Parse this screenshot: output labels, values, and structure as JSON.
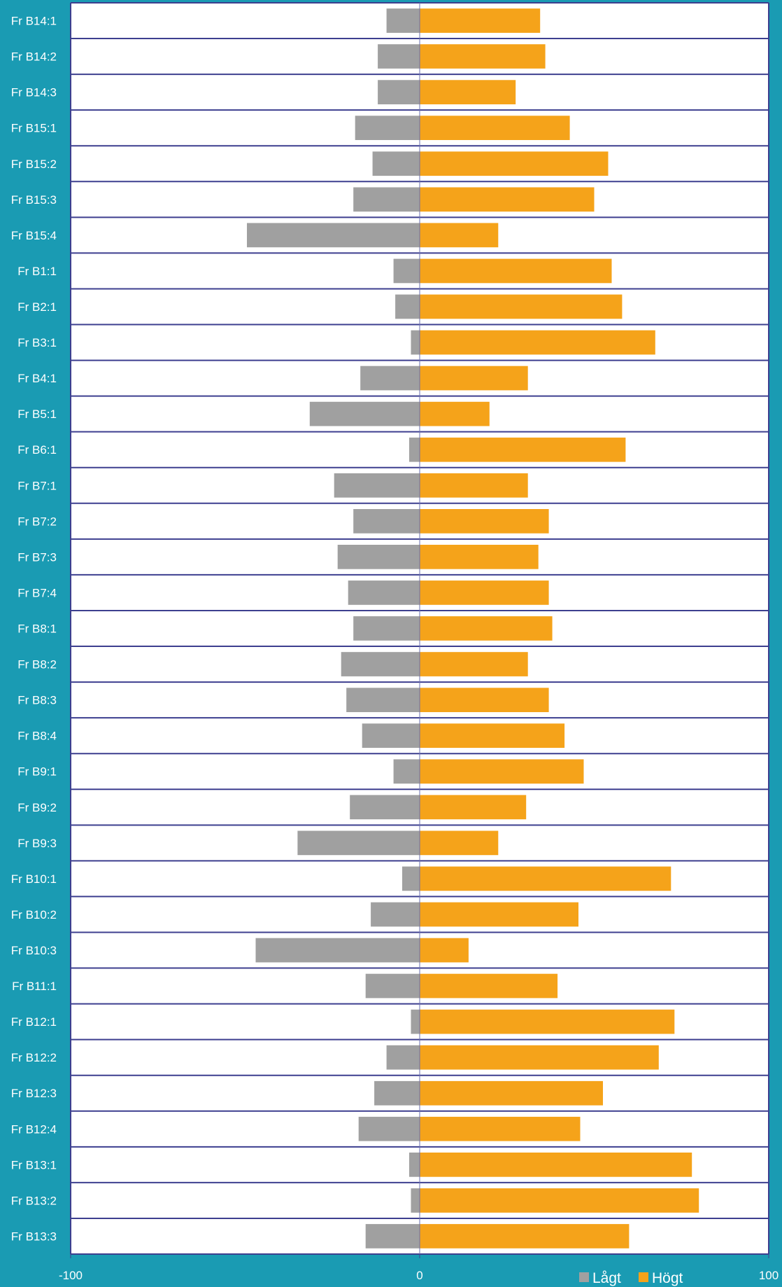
{
  "chart_data": {
    "type": "bar",
    "orientation": "horizontal",
    "stacked": "diverging",
    "categories": [
      "Fr B14:1",
      "Fr B14:2",
      "Fr B14:3",
      "Fr B15:1",
      "Fr B15:2",
      "Fr B15:3",
      "Fr B15:4",
      "Fr B1:1",
      "Fr B2:1",
      "Fr B3:1",
      "Fr B4:1",
      "Fr B5:1",
      "Fr B6:1",
      "Fr B7:1",
      "Fr B7:2",
      "Fr B7:3",
      "Fr B7:4",
      "Fr B8:1",
      "Fr B8:2",
      "Fr B8:3",
      "Fr B8:4",
      "Fr B9:1",
      "Fr B9:2",
      "Fr B9:3",
      "Fr B10:1",
      "Fr B10:2",
      "Fr B10:3",
      "Fr B11:1",
      "Fr B12:1",
      "Fr B12:2",
      "Fr B12:3",
      "Fr B12:4",
      "Fr B13:1",
      "Fr B13:2",
      "Fr B13:3"
    ],
    "series": [
      {
        "name": "Lågt",
        "color": "#a0a0a0",
        "values": [
          -9.5,
          -12,
          -12,
          -18.5,
          -13.5,
          -19,
          -49.5,
          -7.5,
          -7,
          -2.5,
          -17,
          -31.5,
          -3,
          -24.5,
          -19,
          -23.5,
          -20.5,
          -19,
          -22.5,
          -21,
          -16.5,
          -7.5,
          -20,
          -35,
          -5,
          -14,
          -47,
          -15.5,
          -2.5,
          -9.5,
          -13,
          -17.5,
          -3,
          -2.5,
          -15.5
        ]
      },
      {
        "name": "Högt",
        "color": "#f5a31a",
        "values": [
          34.5,
          36,
          27.5,
          43,
          54,
          50,
          22.5,
          55,
          58,
          67.5,
          31,
          20,
          59,
          31,
          37,
          34,
          37,
          38,
          31,
          37,
          41.5,
          47,
          30.5,
          22.5,
          72,
          45.5,
          14,
          39.5,
          73,
          68.5,
          52.5,
          46,
          78,
          80,
          60
        ]
      }
    ],
    "xlim": [
      -100,
      100
    ],
    "x_ticks": [
      "-100",
      "0",
      "100"
    ],
    "title": "",
    "xlabel": "",
    "ylabel": "",
    "legend_position": "bottom-right",
    "grid": true
  }
}
